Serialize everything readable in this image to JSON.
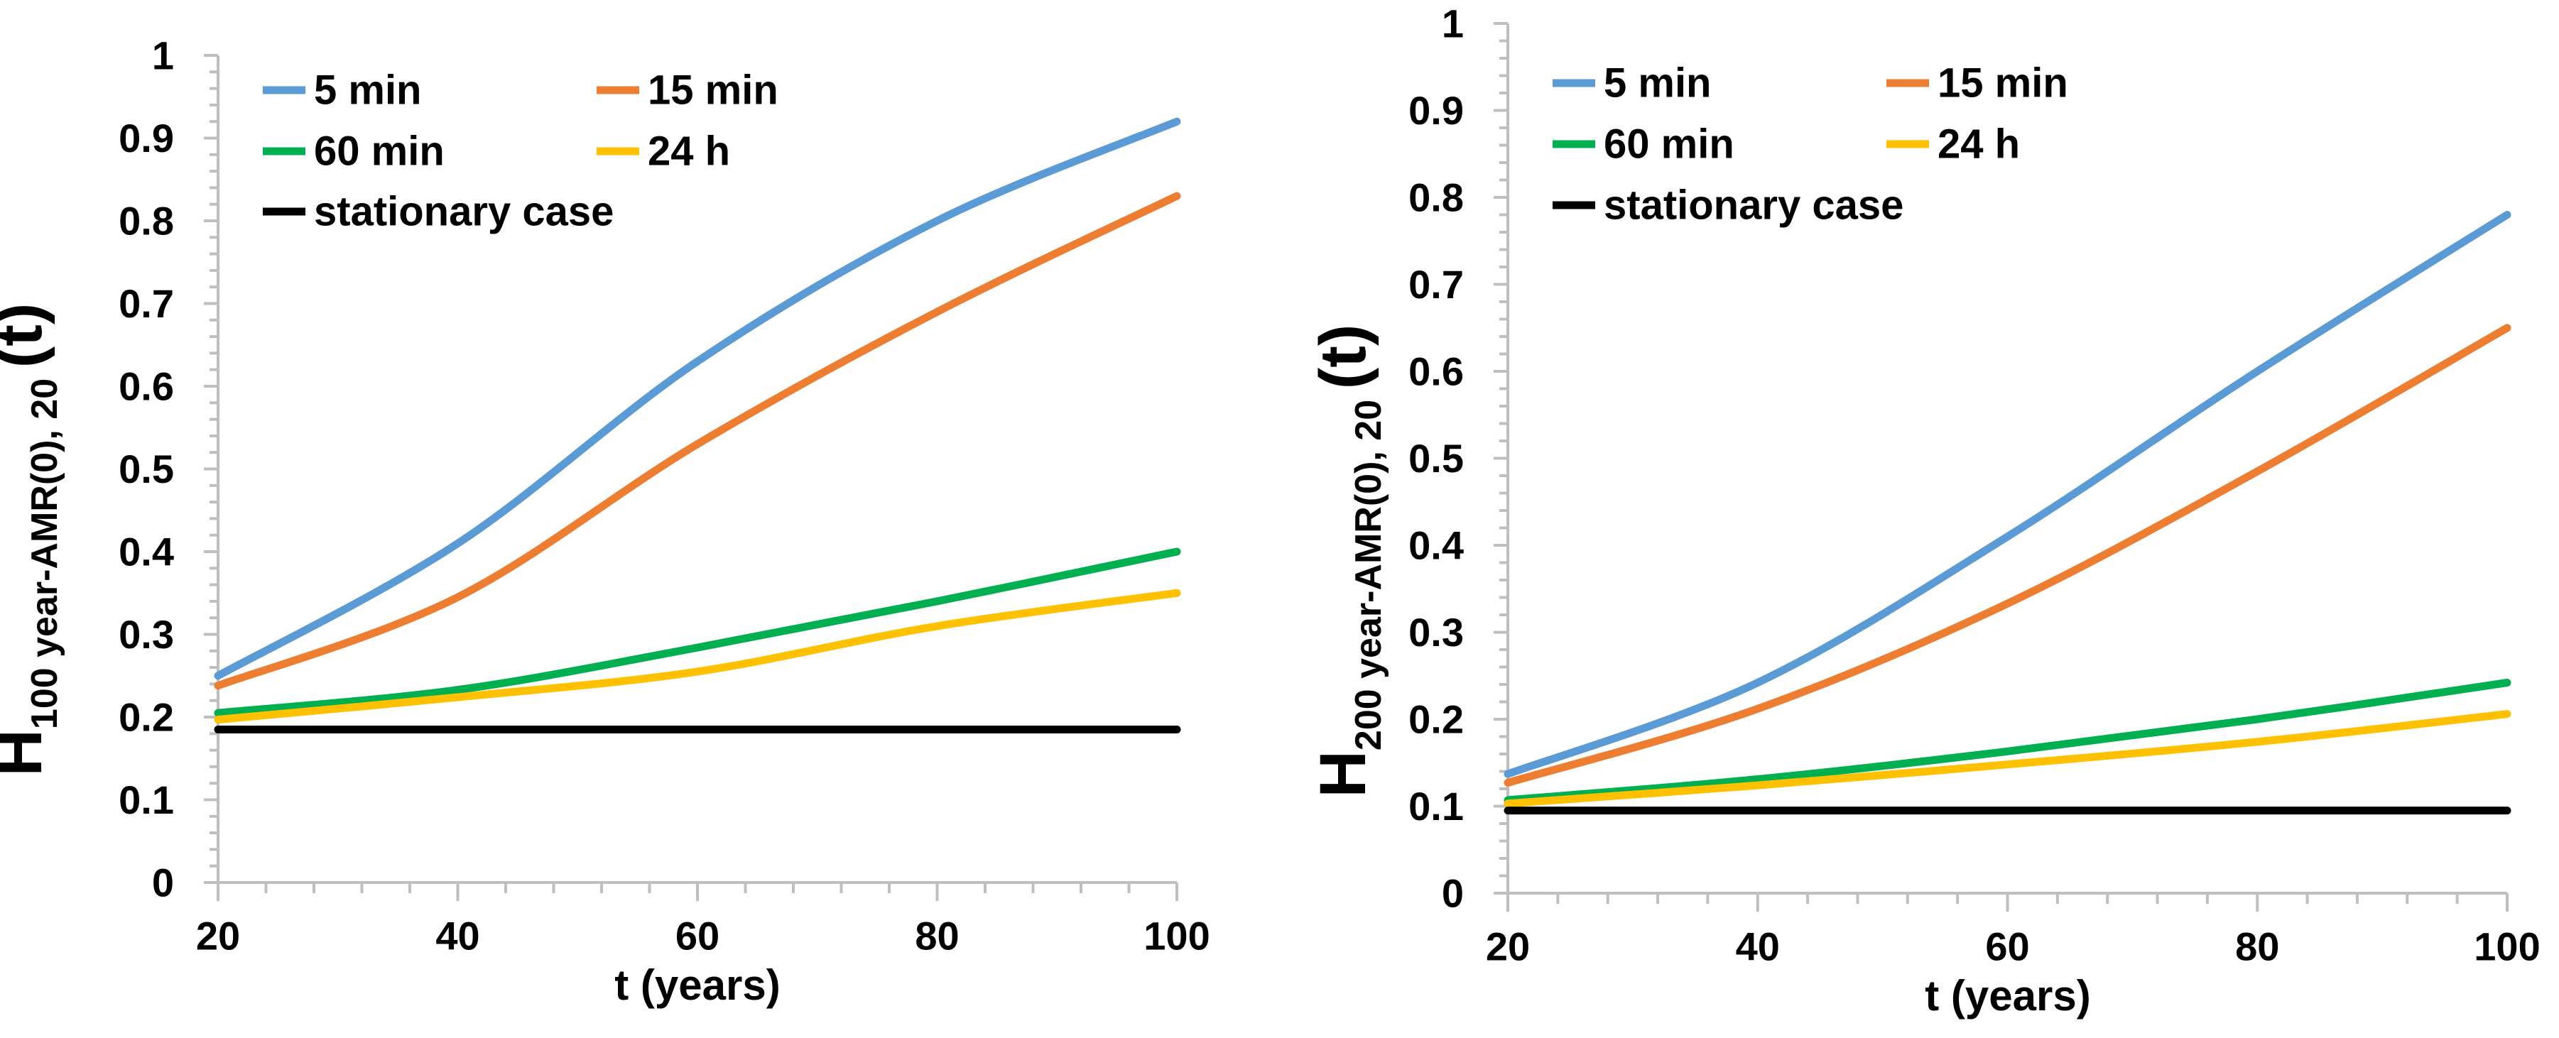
{
  "page": {
    "background": "#FFFFFF",
    "text_color": "#000000",
    "axis_color": "#BFBFBF"
  },
  "chart_data": [
    {
      "type": "line",
      "id": "left",
      "ylabel_main": "H",
      "ylabel_sub": "100 year-AMR(0), 20 ",
      "ylabel_suffix": "(t)",
      "xlabel": "t (years)",
      "xlim": [
        20,
        100
      ],
      "ylim": [
        0,
        1
      ],
      "grid": false,
      "legend_position": "top-left-inside",
      "x": [
        20,
        40,
        60,
        80,
        100
      ],
      "series": [
        {
          "name": "5 min",
          "color": "#5B9BD5",
          "values": [
            0.25,
            0.41,
            0.63,
            0.8,
            0.92
          ]
        },
        {
          "name": "15 min",
          "color": "#ED7D31",
          "values": [
            0.238,
            0.345,
            0.53,
            0.69,
            0.83
          ]
        },
        {
          "name": "60 min",
          "color": "#00B050",
          "values": [
            0.205,
            0.233,
            0.284,
            0.34,
            0.4
          ]
        },
        {
          "name": "24 h",
          "color": "#FFC000",
          "values": [
            0.197,
            0.224,
            0.255,
            0.31,
            0.35
          ]
        },
        {
          "name": "stationary case",
          "color": "#000000",
          "values": [
            0.185,
            0.185,
            0.185,
            0.185,
            0.185
          ]
        }
      ],
      "yticks": [
        {
          "v": 0,
          "label": "0"
        },
        {
          "v": 0.1,
          "label": "0.1"
        },
        {
          "v": 0.2,
          "label": "0.2"
        },
        {
          "v": 0.3,
          "label": "0.3"
        },
        {
          "v": 0.4,
          "label": "0.4"
        },
        {
          "v": 0.5,
          "label": "0.5"
        },
        {
          "v": 0.6,
          "label": "0.6"
        },
        {
          "v": 0.7,
          "label": "0.7"
        },
        {
          "v": 0.8,
          "label": "0.8"
        },
        {
          "v": 0.9,
          "label": "0.9"
        },
        {
          "v": 1,
          "label": "1"
        }
      ],
      "xticks": [
        {
          "v": 20,
          "label": "20"
        },
        {
          "v": 40,
          "label": "40"
        },
        {
          "v": 60,
          "label": "60"
        },
        {
          "v": 80,
          "label": "80"
        },
        {
          "v": 100,
          "label": "100"
        }
      ],
      "y_minor_step": 0.02,
      "x_minor_step": 4
    },
    {
      "type": "line",
      "id": "right",
      "ylabel_main": "H",
      "ylabel_sub": "200 year-AMR(0), 20 ",
      "ylabel_suffix": "(t)",
      "xlabel": "t (years)",
      "xlim": [
        20,
        100
      ],
      "ylim": [
        0,
        1
      ],
      "grid": false,
      "legend_position": "top-left-inside",
      "x": [
        20,
        40,
        60,
        80,
        100
      ],
      "series": [
        {
          "name": "5 min",
          "color": "#5B9BD5",
          "values": [
            0.137,
            0.242,
            0.41,
            0.6,
            0.78
          ]
        },
        {
          "name": "15 min",
          "color": "#ED7D31",
          "values": [
            0.127,
            0.212,
            0.333,
            0.485,
            0.65
          ]
        },
        {
          "name": "60 min",
          "color": "#00B050",
          "values": [
            0.107,
            0.131,
            0.163,
            0.2,
            0.242
          ]
        },
        {
          "name": "24 h",
          "color": "#FFC000",
          "values": [
            0.103,
            0.124,
            0.148,
            0.174,
            0.206
          ]
        },
        {
          "name": "stationary case",
          "color": "#000000",
          "values": [
            0.095,
            0.095,
            0.095,
            0.095,
            0.095
          ]
        }
      ],
      "yticks": [
        {
          "v": 0,
          "label": "0"
        },
        {
          "v": 0.1,
          "label": "0.1"
        },
        {
          "v": 0.2,
          "label": "0.2"
        },
        {
          "v": 0.3,
          "label": "0.3"
        },
        {
          "v": 0.4,
          "label": "0.4"
        },
        {
          "v": 0.5,
          "label": "0.5"
        },
        {
          "v": 0.6,
          "label": "0.6"
        },
        {
          "v": 0.7,
          "label": "0.7"
        },
        {
          "v": 0.8,
          "label": "0.8"
        },
        {
          "v": 0.9,
          "label": "0.9"
        },
        {
          "v": 1,
          "label": "1"
        }
      ],
      "xticks": [
        {
          "v": 20,
          "label": "20"
        },
        {
          "v": 40,
          "label": "40"
        },
        {
          "v": 60,
          "label": "60"
        },
        {
          "v": 80,
          "label": "80"
        },
        {
          "v": 100,
          "label": "100"
        }
      ],
      "y_minor_step": 0.02,
      "x_minor_step": 4
    }
  ]
}
